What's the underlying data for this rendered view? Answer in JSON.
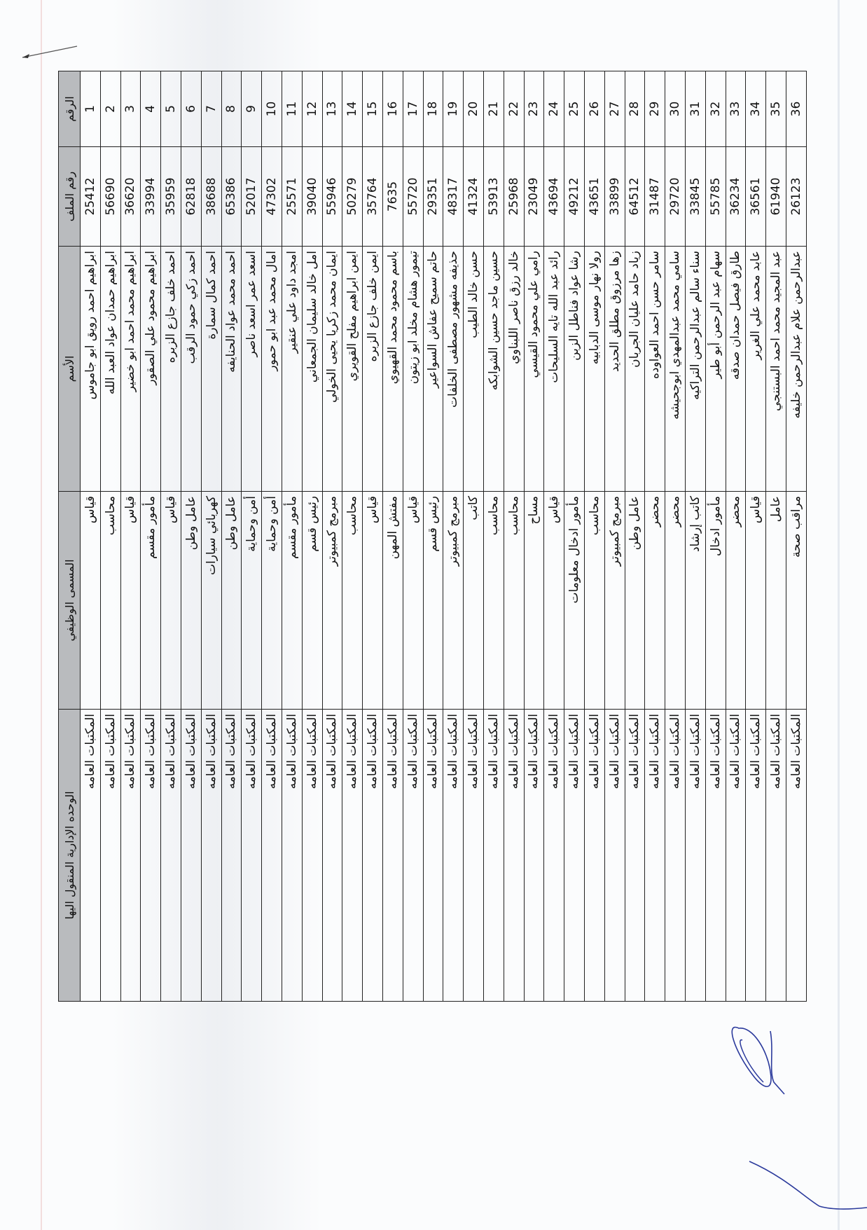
{
  "headers": {
    "number": "الرقم",
    "file_number": "رقم الملف",
    "name": "الأسم",
    "job_title": "المسمى الوظيفي",
    "unit": "الوحده الإدارية المنقول اليها"
  },
  "rows": [
    {
      "number": "1",
      "file_number": "25412",
      "name": "ابراهيم احمد رويق ابو جاموس",
      "job_title": "قياس",
      "unit": "المكتبات العامه"
    },
    {
      "number": "2",
      "file_number": "56690",
      "name": "ابراهيم حمدان عواد العبد الله",
      "job_title": "محاسب",
      "unit": "المكتبات العامه"
    },
    {
      "number": "3",
      "file_number": "36620",
      "name": "ابراهيم محمد احمد ابو خضير",
      "job_title": "قياس",
      "unit": "المكتبات العامه"
    },
    {
      "number": "4",
      "file_number": "33994",
      "name": "ابراهيم محمود علي الصقور",
      "job_title": "مأمور مقسم",
      "unit": "المكتبات العامه"
    },
    {
      "number": "5",
      "file_number": "35959",
      "name": "احمد خلف جازع الزبره",
      "job_title": "قياس",
      "unit": "المكتبات العامه"
    },
    {
      "number": "6",
      "file_number": "62818",
      "name": "احمد زكي حمود الرقب",
      "job_title": "عامل وطن",
      "unit": "المكتبات العامه"
    },
    {
      "number": "7",
      "file_number": "38688",
      "name": "احمد كمال سمارة",
      "job_title": "كهربائي سيارات",
      "unit": "المكتبات العامه"
    },
    {
      "number": "8",
      "file_number": "65386",
      "name": "احمد محمد عواد الحنايفه",
      "job_title": "عامل وطن",
      "unit": "المكتبات العامه"
    },
    {
      "number": "9",
      "file_number": "52017",
      "name": "اسعد عمر اسعد ناصر",
      "job_title": "أمن وحماية",
      "unit": "المكتبات العامه"
    },
    {
      "number": "10",
      "file_number": "47302",
      "name": "امال محمد عبد ابو حمور",
      "job_title": "أمن وحماية",
      "unit": "المكتبات العامه"
    },
    {
      "number": "11",
      "file_number": "25571",
      "name": "امجد داود علي عنقير",
      "job_title": "مأمور مقسم",
      "unit": "المكتبات العامه"
    },
    {
      "number": "12",
      "file_number": "39040",
      "name": "امل خالد سليمان الجمعاني",
      "job_title": "رئيس قسم",
      "unit": "المكتبات العامه"
    },
    {
      "number": "13",
      "file_number": "55946",
      "name": "ايمان محمد زكريا يحيى الخولي",
      "job_title": "مبرمج كمبيوتر",
      "unit": "المكتبات العامه"
    },
    {
      "number": "14",
      "file_number": "50279",
      "name": "ايمن ابراهيم مفلح القويري",
      "job_title": "محاسب",
      "unit": "المكتبات العامه"
    },
    {
      "number": "15",
      "file_number": "35764",
      "name": "ايمن خلف جازع الزبره",
      "job_title": "قياس",
      "unit": "المكتبات العامه"
    },
    {
      "number": "16",
      "file_number": "7635",
      "name": "باسم محمود محمد القهيوي",
      "job_title": "مفتش المهن",
      "unit": "المكتبات العامه"
    },
    {
      "number": "17",
      "file_number": "55720",
      "name": "تيمور هشام مخلد ابو زيتون",
      "job_title": "قياس",
      "unit": "المكتبات العامه"
    },
    {
      "number": "18",
      "file_number": "29351",
      "name": "حاتم سميح عفاش السواعير",
      "job_title": "رئيس قسم",
      "unit": "المكتبات العامه"
    },
    {
      "number": "19",
      "file_number": "48317",
      "name": "حذيفه مشهور مصطفى الخلفات",
      "job_title": "مبرمج كمبيوتر",
      "unit": "المكتبات العامه"
    },
    {
      "number": "20",
      "file_number": "41324",
      "name": "حسن خالد الطيب",
      "job_title": "كاتب",
      "unit": "المكتبات العامه"
    },
    {
      "number": "21",
      "file_number": "53913",
      "name": "حسين ماجد حسين الشوابكه",
      "job_title": "محاسب",
      "unit": "المكتبات العامه"
    },
    {
      "number": "22",
      "file_number": "25968",
      "name": "خالد رزق ناصر اللبناوي",
      "job_title": "محاسب",
      "unit": "المكتبات العامه"
    },
    {
      "number": "23",
      "file_number": "23049",
      "name": "رامي علي محمود القيسي",
      "job_title": "مساح",
      "unit": "المكتبات العامه"
    },
    {
      "number": "24",
      "file_number": "43694",
      "name": "رائد عبد الله تايه السليحات",
      "job_title": "قياس",
      "unit": "المكتبات العامه"
    },
    {
      "number": "25",
      "file_number": "49212",
      "name": "رشا عواد فناطل الزبن",
      "job_title": "مأمور ادخال معلومات",
      "unit": "المكتبات العامه"
    },
    {
      "number": "26",
      "file_number": "43651",
      "name": "رولا نهار موسى الدبابيه",
      "job_title": "محاسب",
      "unit": "المكتبات العامه"
    },
    {
      "number": "27",
      "file_number": "33899",
      "name": "زها مرزوق مطلق الحديد",
      "job_title": "مبرمج كمبيوتر",
      "unit": "المكتبات العامه"
    },
    {
      "number": "28",
      "file_number": "64512",
      "name": "زياد حامد عليان الجربان",
      "job_title": "عامل وطن",
      "unit": "المكتبات العامه"
    },
    {
      "number": "29",
      "file_number": "31487",
      "name": "سامر حسن احمد العواوده",
      "job_title": "محضر",
      "unit": "المكتبات العامه"
    },
    {
      "number": "30",
      "file_number": "29720",
      "name": "سامي محمد عبدالمهدي ابوجحيشه",
      "job_title": "محضر",
      "unit": "المكتبات العامه"
    },
    {
      "number": "31",
      "file_number": "33845",
      "name": "سناء سالم عبدالرحمن التراكيه",
      "job_title": "كاتب إرشاد",
      "unit": "المكتبات العامه"
    },
    {
      "number": "32",
      "file_number": "55785",
      "name": "سهام عبد الرحمن أبو طير",
      "job_title": "مأمور ادخال",
      "unit": "المكتبات العامه"
    },
    {
      "number": "33",
      "file_number": "36234",
      "name": "طارق فيصل حمدان صدقه",
      "job_title": "محضر",
      "unit": "المكتبات العامه"
    },
    {
      "number": "34",
      "file_number": "36561",
      "name": "عابد محمد علي الغرير",
      "job_title": "قياس",
      "unit": "المكتبات العامه"
    },
    {
      "number": "35",
      "file_number": "61940",
      "name": "عبد المجيد محمد احمد البستنجي",
      "job_title": "عامل",
      "unit": "المكتبات العامه"
    },
    {
      "number": "36",
      "file_number": "26123",
      "name": "عبدالرحمن علام عبدالرحمن خليفه",
      "job_title": "مراقب صحة",
      "unit": "المكتبات العامه"
    }
  ],
  "colors": {
    "header_bg": "#b9bbbe",
    "ink": "#111111",
    "signature": "#2b3a9c"
  }
}
